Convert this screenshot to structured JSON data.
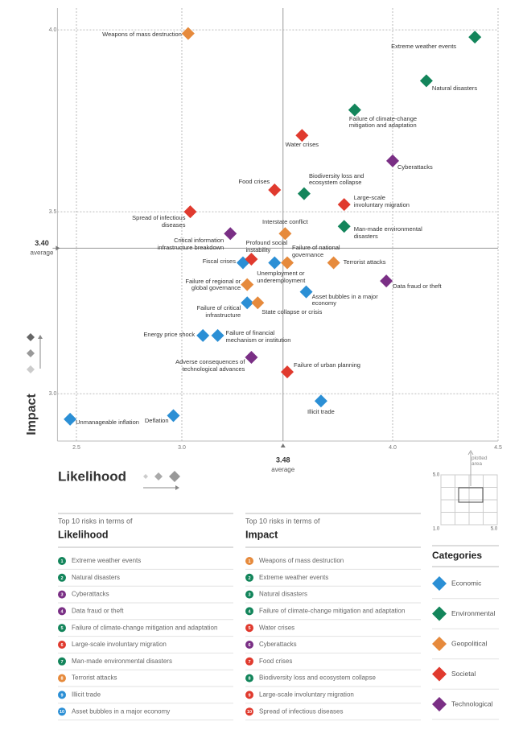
{
  "chart_data": {
    "type": "scatter",
    "x_label": "Likelihood",
    "y_label": "Impact",
    "xlim": [
      2.41,
      4.5
    ],
    "ylim": [
      2.87,
      4.06
    ],
    "xticks": [
      2.5,
      {
        "value": 3,
        "label": "3.0"
      },
      {
        "value": 4,
        "label": "4.0"
      },
      4.5
    ],
    "yticks": [
      {
        "value": 3,
        "label": "3.0"
      },
      3.5,
      {
        "value": 4,
        "label": "4.0"
      }
    ],
    "grid": true,
    "x_average": {
      "value": 3.48,
      "label": "3.48",
      "text": "average"
    },
    "y_average": {
      "value": 3.4,
      "label": "3.40",
      "text": "average"
    },
    "legend_title": "Categories",
    "series": [
      {
        "name": "Economic",
        "color": "#2b8fd5",
        "x": [
          3.29,
          3.44,
          3.59,
          3.31,
          3.1,
          3.17,
          3.66,
          2.96,
          2.47
        ],
        "y": [
          3.36,
          3.36,
          3.28,
          3.25,
          3.16,
          3.16,
          2.98,
          2.94,
          2.93
        ],
        "labels": [
          "Fiscal crises",
          "Unemployment or\nunderemployment",
          "Asset bubbles in a major\neconomy",
          "Failure of critical\ninfrastructure",
          "Energy price shock",
          "Failure of financial\nmechanism or institution",
          "Illicit trade",
          "Deflation",
          "Unmanageable inflation"
        ]
      },
      {
        "name": "Environmental",
        "color": "#13855b",
        "x": [
          4.39,
          4.16,
          3.82,
          3.58,
          3.77
        ],
        "y": [
          3.98,
          3.86,
          3.78,
          3.55,
          3.46
        ],
        "labels": [
          "Extreme weather events",
          "Natural disasters",
          "Failure of climate-change\nmitigation and adaptation",
          "Biodiversity loss and\necosystem collapse",
          "Man-made environmental\ndisasters"
        ]
      },
      {
        "name": "Geopolitical",
        "color": "#e68a3c",
        "x": [
          3.03,
          3.49,
          3.5,
          3.72,
          3.31,
          3.36
        ],
        "y": [
          3.99,
          3.44,
          3.36,
          3.36,
          3.3,
          3.25
        ],
        "labels": [
          "Weapons of mass destruction",
          "Interstate conflict",
          "Failure of national\ngovernance",
          "Terrorist attacks",
          "Failure of regional or\nglobal governance",
          "State collapse or crisis"
        ]
      },
      {
        "name": "Societal",
        "color": "#e03a2e",
        "x": [
          3.57,
          3.44,
          3.77,
          3.04,
          3.33,
          3.5
        ],
        "y": [
          3.71,
          3.56,
          3.52,
          3.5,
          3.37,
          3.06
        ],
        "labels": [
          "Water crises",
          "Food crises",
          "Large-scale\ninvoluntary migration",
          "Spread of infectious\ndiseases",
          "Profound social\ninstability",
          "Failure of urban planning"
        ]
      },
      {
        "name": "Technological",
        "color": "#7a2f85",
        "x": [
          4.0,
          3.23,
          3.97,
          3.33
        ],
        "y": [
          3.64,
          3.44,
          3.31,
          3.1
        ],
        "labels": [
          "Cyberattacks",
          "Critical information\ninfrastructure breakdown",
          "Data fraud or theft",
          "Adverse consequences of\ntechnological advances"
        ]
      }
    ]
  },
  "inset": {
    "caption": "plotted area",
    "y_max": {
      "value": 5,
      "label": "5.0"
    },
    "origin": {
      "value": 1,
      "label": "1.0"
    },
    "x_max": {
      "value": 5,
      "label": "5.0"
    }
  },
  "rankings": [
    {
      "heading": "Top 10 risks in terms of",
      "title": "Likelihood",
      "items": [
        {
          "rank": 1,
          "text": "Extreme weather events",
          "color": "#13855b"
        },
        {
          "rank": 2,
          "text": "Natural disasters",
          "color": "#13855b"
        },
        {
          "rank": 3,
          "text": "Cyberattacks",
          "color": "#7a2f85"
        },
        {
          "rank": 4,
          "text": "Data fraud or theft",
          "color": "#7a2f85"
        },
        {
          "rank": 5,
          "text": "Failure of climate-change mitigation and adaptation",
          "color": "#13855b"
        },
        {
          "rank": 6,
          "text": "Large-scale involuntary migration",
          "color": "#e03a2e"
        },
        {
          "rank": 7,
          "text": "Man-made environmental disasters",
          "color": "#13855b"
        },
        {
          "rank": 8,
          "text": "Terrorist attacks",
          "color": "#e68a3c"
        },
        {
          "rank": 9,
          "text": "Illicit trade",
          "color": "#2b8fd5"
        },
        {
          "rank": 10,
          "text": "Asset bubbles in a major economy",
          "color": "#2b8fd5"
        }
      ]
    },
    {
      "heading": "Top 10 risks in terms of",
      "title": "Impact",
      "items": [
        {
          "rank": 1,
          "text": "Weapons of mass destruction",
          "color": "#e68a3c"
        },
        {
          "rank": 2,
          "text": "Extreme weather events",
          "color": "#13855b"
        },
        {
          "rank": 3,
          "text": "Natural disasters",
          "color": "#13855b"
        },
        {
          "rank": 4,
          "text": "Failure of climate-change mitigation and adaptation",
          "color": "#13855b"
        },
        {
          "rank": 5,
          "text": "Water crises",
          "color": "#e03a2e"
        },
        {
          "rank": 6,
          "text": "Cyberattacks",
          "color": "#7a2f85"
        },
        {
          "rank": 7,
          "text": "Food crises",
          "color": "#e03a2e"
        },
        {
          "rank": 8,
          "text": "Biodiversity loss and ecosystem collapse",
          "color": "#13855b"
        },
        {
          "rank": 9,
          "text": "Large-scale involuntary migration",
          "color": "#e03a2e"
        },
        {
          "rank": 10,
          "text": "Spread of infectious diseases",
          "color": "#e03a2e"
        }
      ]
    }
  ]
}
